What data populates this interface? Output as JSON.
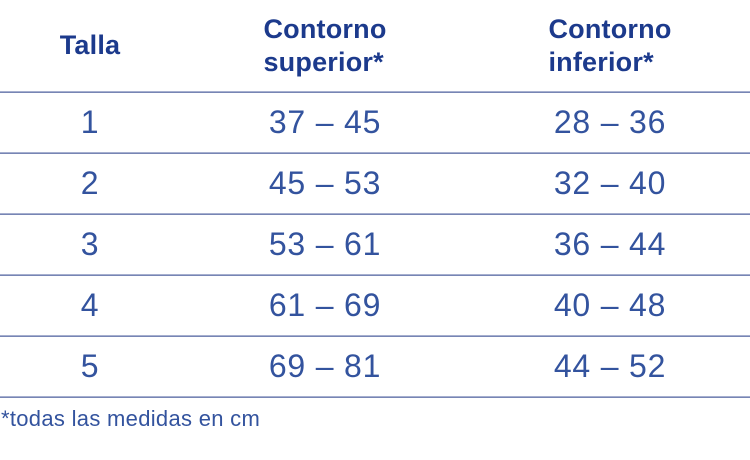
{
  "colors": {
    "header_text": "#1c3a8c",
    "value_text": "#33539e",
    "divider_top": "#bdc4dc",
    "divider_bottom": "#5f70a7",
    "background": "#ffffff"
  },
  "table": {
    "columns": [
      {
        "label": "Talla"
      },
      {
        "label": "Contorno superior*",
        "line1": "Contorno",
        "line2": "superior*"
      },
      {
        "label": "Contorno inferior*",
        "line1": "Contorno",
        "line2": "inferior*"
      }
    ],
    "rows": [
      {
        "talla": "1",
        "superior": "37 – 45",
        "inferior": "28 – 36"
      },
      {
        "talla": "2",
        "superior": "45 – 53",
        "inferior": "32 – 40"
      },
      {
        "talla": "3",
        "superior": "53 – 61",
        "inferior": "36 – 44"
      },
      {
        "talla": "4",
        "superior": "61 – 69",
        "inferior": "40 – 48"
      },
      {
        "talla": "5",
        "superior": "69 – 81",
        "inferior": "44 – 52"
      }
    ],
    "footnote": "*todas las medidas en cm"
  },
  "chart_data": {
    "type": "table",
    "title": "",
    "columns": [
      "Talla",
      "Contorno superior*",
      "Contorno inferior*"
    ],
    "rows": [
      [
        "1",
        "37 – 45",
        "28 – 36"
      ],
      [
        "2",
        "45 – 53",
        "32 – 40"
      ],
      [
        "3",
        "53 – 61",
        "36 – 44"
      ],
      [
        "4",
        "61 – 69",
        "40 – 48"
      ],
      [
        "5",
        "69 – 81",
        "44 – 52"
      ]
    ],
    "footnote": "*todas las medidas en cm",
    "units": "cm"
  }
}
